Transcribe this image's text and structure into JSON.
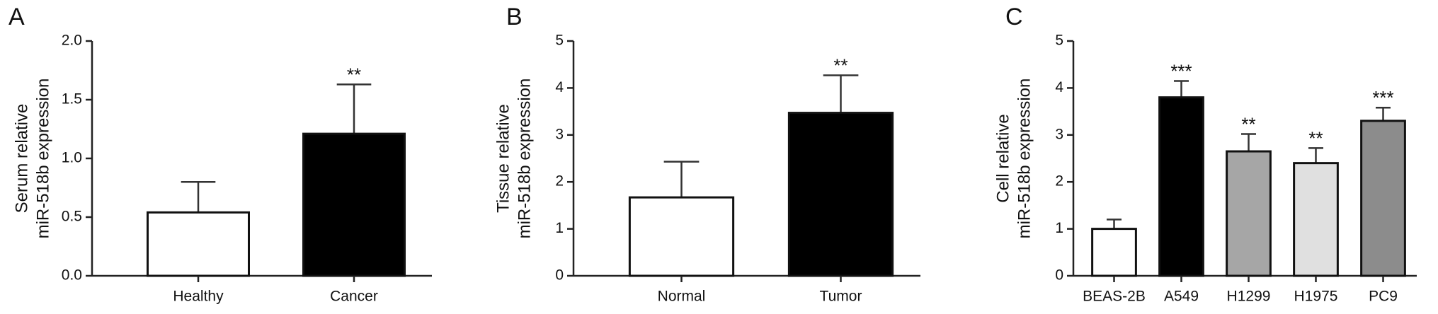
{
  "chart_data": [
    {
      "type": "bar",
      "panel_label": "A",
      "y_label": [
        "Serum relative",
        "miR-518b expression"
      ],
      "categories": [
        "Healthy",
        "Cancer"
      ],
      "values": [
        0.54,
        1.21
      ],
      "errors": [
        0.26,
        0.42
      ],
      "colors": [
        "#ffffff",
        "#000000"
      ],
      "annotations": [
        null,
        "**"
      ],
      "ylim": [
        0,
        2
      ],
      "yticks": [
        {
          "value": 0,
          "label": "0.0"
        },
        0.5,
        {
          "value": 1,
          "label": "1.0"
        },
        1.5,
        {
          "value": 2,
          "label": "2.0"
        }
      ]
    },
    {
      "type": "bar",
      "panel_label": "B",
      "y_label": [
        "Tissue relative",
        "miR-518b expression"
      ],
      "categories": [
        "Normal",
        "Tumor"
      ],
      "values": [
        1.67,
        3.47
      ],
      "errors": [
        0.76,
        0.8
      ],
      "colors": [
        "#ffffff",
        "#000000"
      ],
      "annotations": [
        null,
        "**"
      ],
      "ylim": [
        0,
        5
      ],
      "yticks": [
        0,
        1,
        2,
        3,
        4,
        5
      ]
    },
    {
      "type": "bar",
      "panel_label": "C",
      "y_label": [
        "Cell relative",
        "miR-518b expression"
      ],
      "categories": [
        "BEAS-2B",
        "A549",
        "H1299",
        "H1975",
        "PC9"
      ],
      "values": [
        1.0,
        3.8,
        2.65,
        2.4,
        3.3
      ],
      "errors": [
        0.2,
        0.35,
        0.37,
        0.32,
        0.28
      ],
      "colors": [
        "#ffffff",
        "#000000",
        "#a6a6a6",
        "#e0e0e0",
        "#8c8c8c"
      ],
      "annotations": [
        null,
        "***",
        "**",
        "**",
        "***"
      ],
      "ylim": [
        0,
        5
      ],
      "yticks": [
        0,
        1,
        2,
        3,
        4,
        5
      ]
    }
  ]
}
